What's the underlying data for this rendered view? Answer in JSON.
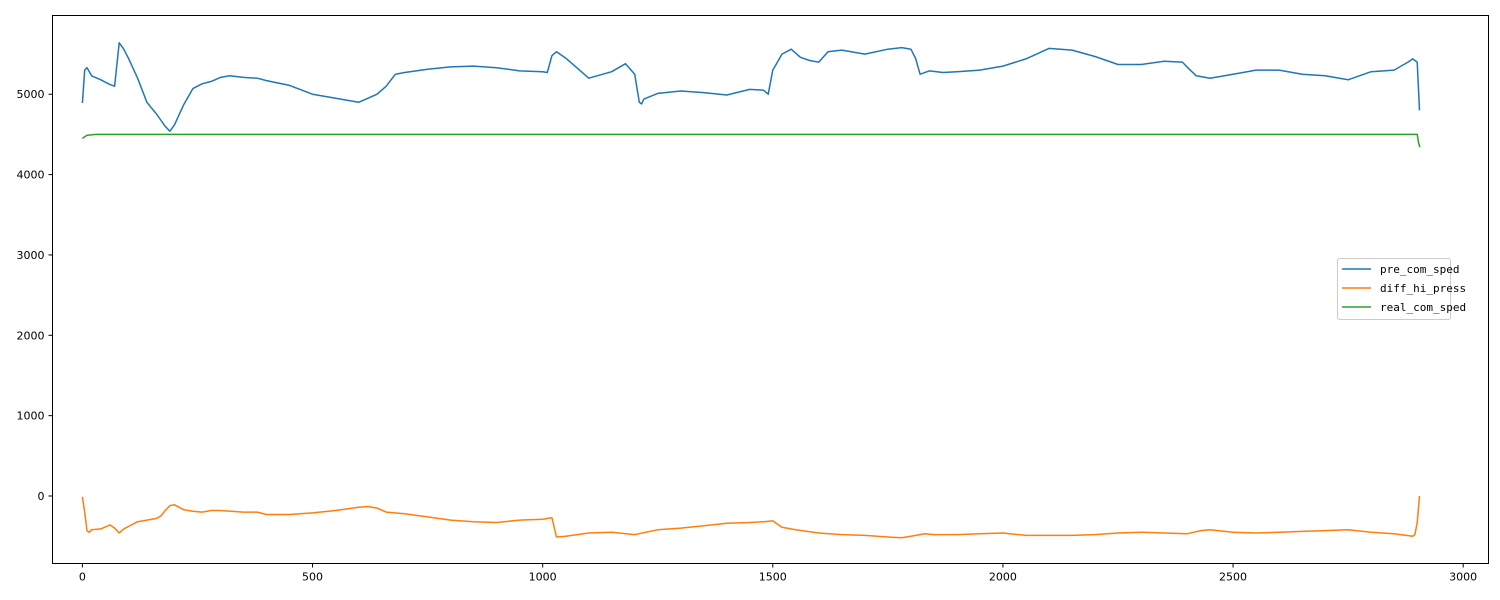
{
  "chart_data": {
    "type": "line",
    "title": "",
    "xlabel": "",
    "ylabel": "",
    "xlim": [
      -65,
      3055
    ],
    "ylim": [
      -840,
      5980
    ],
    "x_ticks": [
      0,
      500,
      1000,
      1500,
      2000,
      2500,
      3000
    ],
    "y_ticks": [
      0,
      1000,
      2000,
      3000,
      4000,
      5000
    ],
    "grid": false,
    "legend": {
      "placement": "center-right"
    },
    "series": [
      {
        "name": "pre_com_sped",
        "color": "#1f77b4",
        "x": [
          0,
          5,
          10,
          20,
          40,
          60,
          70,
          80,
          90,
          100,
          120,
          140,
          160,
          180,
          190,
          200,
          220,
          240,
          260,
          280,
          300,
          320,
          350,
          380,
          400,
          450,
          500,
          550,
          600,
          620,
          640,
          660,
          680,
          700,
          750,
          800,
          850,
          900,
          950,
          1000,
          1010,
          1020,
          1030,
          1050,
          1080,
          1100,
          1150,
          1180,
          1200,
          1210,
          1215,
          1220,
          1250,
          1300,
          1350,
          1400,
          1450,
          1480,
          1490,
          1500,
          1520,
          1540,
          1560,
          1580,
          1600,
          1620,
          1650,
          1700,
          1750,
          1780,
          1800,
          1810,
          1820,
          1840,
          1870,
          1900,
          1950,
          2000,
          2050,
          2100,
          2150,
          2200,
          2250,
          2300,
          2350,
          2390,
          2400,
          2420,
          2450,
          2500,
          2550,
          2600,
          2650,
          2700,
          2750,
          2800,
          2850,
          2880,
          2890,
          2900,
          2905
        ],
        "values": [
          4890,
          5300,
          5330,
          5230,
          5180,
          5120,
          5100,
          5640,
          5560,
          5450,
          5200,
          4900,
          4760,
          4600,
          4540,
          4620,
          4870,
          5070,
          5130,
          5160,
          5210,
          5230,
          5210,
          5200,
          5170,
          5110,
          5000,
          4950,
          4900,
          4950,
          5000,
          5100,
          5250,
          5270,
          5310,
          5340,
          5350,
          5330,
          5290,
          5280,
          5270,
          5480,
          5530,
          5450,
          5300,
          5200,
          5280,
          5380,
          5250,
          4900,
          4880,
          4940,
          5010,
          5040,
          5020,
          4990,
          5060,
          5050,
          5000,
          5300,
          5500,
          5560,
          5460,
          5420,
          5400,
          5530,
          5550,
          5500,
          5560,
          5580,
          5560,
          5450,
          5250,
          5290,
          5270,
          5280,
          5300,
          5350,
          5440,
          5570,
          5550,
          5470,
          5370,
          5370,
          5410,
          5400,
          5340,
          5230,
          5200,
          5250,
          5300,
          5300,
          5250,
          5230,
          5180,
          5280,
          5300,
          5400,
          5440,
          5400,
          4800
        ]
      },
      {
        "name": "diff_hi_press",
        "color": "#ff7f0e",
        "x": [
          0,
          5,
          10,
          15,
          20,
          40,
          60,
          70,
          80,
          90,
          100,
          120,
          140,
          160,
          170,
          180,
          190,
          200,
          210,
          220,
          240,
          260,
          280,
          300,
          350,
          380,
          400,
          450,
          500,
          550,
          600,
          620,
          640,
          660,
          700,
          750,
          800,
          850,
          900,
          950,
          1000,
          1020,
          1030,
          1050,
          1100,
          1150,
          1200,
          1250,
          1300,
          1350,
          1400,
          1450,
          1480,
          1500,
          1520,
          1550,
          1600,
          1650,
          1700,
          1750,
          1780,
          1800,
          1830,
          1850,
          1900,
          1950,
          2000,
          2050,
          2100,
          2150,
          2200,
          2250,
          2300,
          2350,
          2400,
          2430,
          2450,
          2500,
          2550,
          2600,
          2650,
          2700,
          2750,
          2800,
          2850,
          2890,
          2895,
          2900,
          2905
        ],
        "values": [
          -10,
          -200,
          -430,
          -450,
          -420,
          -410,
          -360,
          -400,
          -460,
          -410,
          -380,
          -320,
          -300,
          -280,
          -250,
          -180,
          -120,
          -110,
          -140,
          -170,
          -190,
          -200,
          -180,
          -180,
          -200,
          -200,
          -230,
          -230,
          -210,
          -180,
          -140,
          -130,
          -150,
          -200,
          -220,
          -260,
          -300,
          -320,
          -330,
          -300,
          -290,
          -270,
          -510,
          -500,
          -460,
          -450,
          -480,
          -420,
          -400,
          -370,
          -340,
          -330,
          -320,
          -310,
          -390,
          -420,
          -460,
          -480,
          -490,
          -510,
          -520,
          -500,
          -470,
          -480,
          -480,
          -470,
          -460,
          -490,
          -490,
          -490,
          -480,
          -460,
          -450,
          -460,
          -470,
          -430,
          -420,
          -450,
          -460,
          -450,
          -440,
          -430,
          -420,
          -450,
          -470,
          -500,
          -480,
          -330,
          0
        ]
      },
      {
        "name": "real_com_sped",
        "color": "#2ca02c",
        "x": [
          0,
          10,
          30,
          100,
          500,
          1000,
          1500,
          2000,
          2500,
          2900,
          2903,
          2906
        ],
        "values": [
          4450,
          4490,
          4500,
          4500,
          4500,
          4500,
          4500,
          4500,
          4500,
          4500,
          4400,
          4340
        ]
      }
    ]
  }
}
